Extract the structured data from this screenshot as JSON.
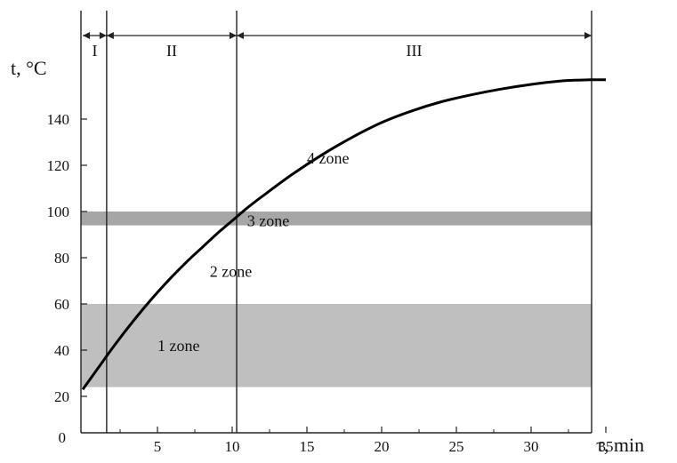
{
  "chart_data": {
    "type": "line",
    "ylabel": "t, °C",
    "xlabel": "τ, min",
    "xlim": [
      0,
      36.5
    ],
    "ylim": [
      0,
      160
    ],
    "x_ticks": [
      5,
      10,
      15,
      20,
      25,
      30,
      35
    ],
    "y_ticks": [
      20,
      40,
      60,
      80,
      100,
      120,
      140
    ],
    "origin_label": "0",
    "grid": false,
    "series": [
      {
        "color": "#000000",
        "x": [
          0,
          1,
          2,
          3,
          4,
          5,
          6,
          7,
          8,
          9,
          10,
          11,
          12,
          14,
          16,
          18,
          20,
          22,
          24,
          26,
          28,
          30,
          32,
          34,
          35
        ],
        "y": [
          23,
          32,
          41,
          49.5,
          57.5,
          65,
          72,
          78.5,
          84.5,
          90.5,
          96,
          101.5,
          106.5,
          116,
          124.5,
          132,
          138.5,
          143.5,
          147.5,
          150.5,
          153,
          155,
          156.5,
          157,
          157
        ]
      }
    ],
    "phases": [
      {
        "label": "I",
        "x_start": 0,
        "x_end": 1.6
      },
      {
        "label": "II",
        "x_start": 1.6,
        "x_end": 10.3
      },
      {
        "label": "III",
        "x_start": 10.3,
        "x_end": 36.5
      }
    ],
    "phase_boundaries": [
      1.6,
      10.3
    ],
    "bands": [
      {
        "label": "1 zone",
        "y_from": 24,
        "y_to": 60,
        "color": "#bfbfbf"
      },
      {
        "label": "3 zone",
        "y_from": 94,
        "y_to": 100,
        "color": "#a6a6a6"
      }
    ],
    "zone_labels": [
      {
        "label": "1 zone",
        "x": 5.0,
        "y": 42
      },
      {
        "label": "2 zone",
        "x": 8.5,
        "y": 74
      },
      {
        "label": "3 zone",
        "x": 11.0,
        "y": 96
      },
      {
        "label": "4 zone",
        "x": 15.0,
        "y": 123
      }
    ]
  }
}
